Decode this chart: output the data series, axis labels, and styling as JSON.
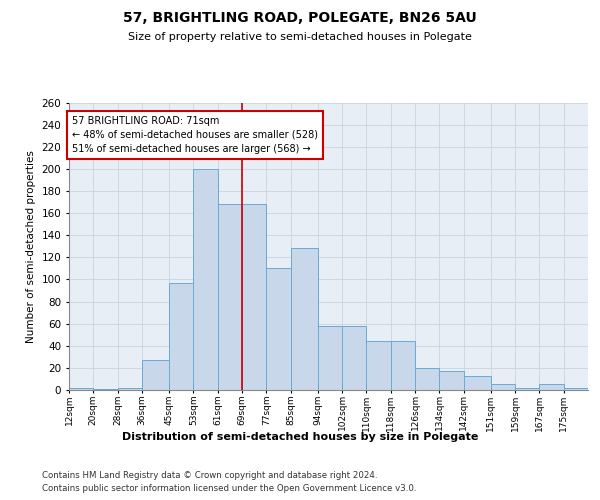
{
  "title": "57, BRIGHTLING ROAD, POLEGATE, BN26 5AU",
  "subtitle": "Size of property relative to semi-detached houses in Polegate",
  "xlabel": "Distribution of semi-detached houses by size in Polegate",
  "ylabel": "Number of semi-detached properties",
  "footnote1": "Contains HM Land Registry data © Crown copyright and database right 2024.",
  "footnote2": "Contains public sector information licensed under the Open Government Licence v3.0.",
  "annotation_title": "57 BRIGHTLING ROAD: 71sqm",
  "annotation_line1": "← 48% of semi-detached houses are smaller (528)",
  "annotation_line2": "51% of semi-detached houses are larger (568) →",
  "vline_x": 69,
  "bar_labels": [
    "12sqm",
    "20sqm",
    "28sqm",
    "36sqm",
    "45sqm",
    "53sqm",
    "61sqm",
    "69sqm",
    "77sqm",
    "85sqm",
    "94sqm",
    "102sqm",
    "110sqm",
    "118sqm",
    "126sqm",
    "134sqm",
    "142sqm",
    "151sqm",
    "159sqm",
    "167sqm",
    "175sqm"
  ],
  "bar_values": [
    2,
    1,
    2,
    27,
    97,
    200,
    168,
    168,
    110,
    128,
    58,
    58,
    44,
    44,
    20,
    17,
    13,
    5,
    2,
    5,
    2
  ],
  "bar_edges": [
    12,
    20,
    28,
    36,
    45,
    53,
    61,
    69,
    77,
    85,
    94,
    102,
    110,
    118,
    126,
    134,
    142,
    151,
    159,
    167,
    175,
    183
  ],
  "bar_color": "#c8d8ea",
  "bar_edge_color": "#6aaad4",
  "vline_color": "#cc0000",
  "annotation_box_edgecolor": "#cc0000",
  "grid_color": "#c8d4e0",
  "bg_color": "#e8eef6",
  "ylim": [
    0,
    260
  ],
  "yticks": [
    0,
    20,
    40,
    60,
    80,
    100,
    120,
    140,
    160,
    180,
    200,
    220,
    240,
    260
  ]
}
